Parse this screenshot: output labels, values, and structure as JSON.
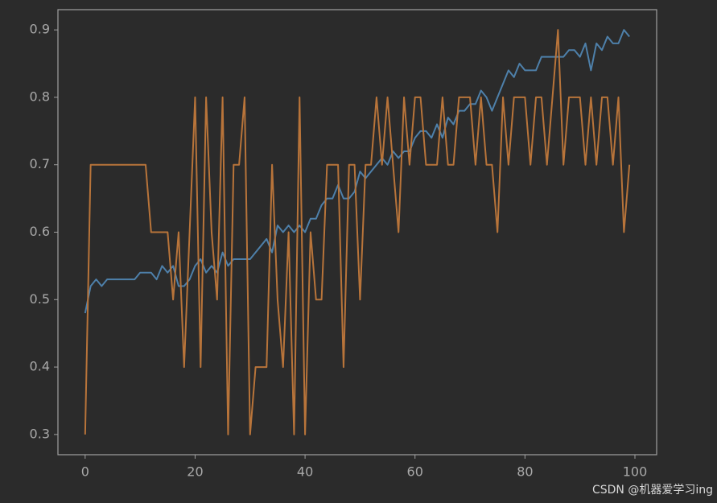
{
  "chart_data": {
    "type": "line",
    "x": [
      0,
      1,
      2,
      3,
      4,
      5,
      6,
      7,
      8,
      9,
      10,
      11,
      12,
      13,
      14,
      15,
      16,
      17,
      18,
      19,
      20,
      21,
      22,
      23,
      24,
      25,
      26,
      27,
      28,
      29,
      30,
      31,
      32,
      33,
      34,
      35,
      36,
      37,
      38,
      39,
      40,
      41,
      42,
      43,
      44,
      45,
      46,
      47,
      48,
      49,
      50,
      51,
      52,
      53,
      54,
      55,
      56,
      57,
      58,
      59,
      60,
      61,
      62,
      63,
      64,
      65,
      66,
      67,
      68,
      69,
      70,
      71,
      72,
      73,
      74,
      75,
      76,
      77,
      78,
      79,
      80,
      81,
      82,
      83,
      84,
      85,
      86,
      87,
      88,
      89,
      90,
      91,
      92,
      93,
      94,
      95,
      96,
      97,
      98,
      99
    ],
    "series": [
      {
        "color": "#4e80aa",
        "values": [
          0.48,
          0.52,
          0.53,
          0.52,
          0.53,
          0.53,
          0.53,
          0.53,
          0.53,
          0.53,
          0.54,
          0.54,
          0.54,
          0.53,
          0.55,
          0.54,
          0.55,
          0.52,
          0.52,
          0.53,
          0.55,
          0.56,
          0.54,
          0.55,
          0.54,
          0.57,
          0.55,
          0.56,
          0.56,
          0.56,
          0.56,
          0.57,
          0.58,
          0.59,
          0.57,
          0.61,
          0.6,
          0.61,
          0.6,
          0.61,
          0.6,
          0.62,
          0.62,
          0.64,
          0.65,
          0.65,
          0.67,
          0.65,
          0.65,
          0.66,
          0.69,
          0.68,
          0.69,
          0.7,
          0.71,
          0.7,
          0.72,
          0.71,
          0.72,
          0.72,
          0.74,
          0.75,
          0.75,
          0.74,
          0.76,
          0.74,
          0.77,
          0.76,
          0.78,
          0.78,
          0.79,
          0.79,
          0.81,
          0.8,
          0.78,
          0.8,
          0.82,
          0.84,
          0.83,
          0.85,
          0.84,
          0.84,
          0.84,
          0.86,
          0.86,
          0.86,
          0.86,
          0.86,
          0.87,
          0.87,
          0.86,
          0.88,
          0.84,
          0.88,
          0.87,
          0.89,
          0.88,
          0.88,
          0.9,
          0.89
        ]
      },
      {
        "color": "#b8743a",
        "values": [
          0.3,
          0.7,
          0.7,
          0.7,
          0.7,
          0.7,
          0.7,
          0.7,
          0.7,
          0.7,
          0.7,
          0.7,
          0.6,
          0.6,
          0.6,
          0.6,
          0.5,
          0.6,
          0.4,
          0.6,
          0.8,
          0.4,
          0.8,
          0.6,
          0.5,
          0.8,
          0.3,
          0.7,
          0.7,
          0.8,
          0.3,
          0.4,
          0.4,
          0.4,
          0.7,
          0.5,
          0.4,
          0.6,
          0.3,
          0.8,
          0.3,
          0.6,
          0.5,
          0.5,
          0.7,
          0.7,
          0.7,
          0.4,
          0.7,
          0.7,
          0.5,
          0.7,
          0.7,
          0.8,
          0.7,
          0.8,
          0.7,
          0.6,
          0.8,
          0.7,
          0.8,
          0.8,
          0.7,
          0.7,
          0.7,
          0.8,
          0.7,
          0.7,
          0.8,
          0.8,
          0.8,
          0.7,
          0.8,
          0.7,
          0.7,
          0.6,
          0.8,
          0.7,
          0.8,
          0.8,
          0.8,
          0.7,
          0.8,
          0.8,
          0.7,
          0.8,
          0.9,
          0.7,
          0.8,
          0.8,
          0.8,
          0.7,
          0.8,
          0.7,
          0.8,
          0.8,
          0.7,
          0.8,
          0.6,
          0.7
        ]
      }
    ],
    "xlim": [
      -4.95,
      103.95
    ],
    "xticks": [
      0,
      20,
      40,
      60,
      80,
      100
    ],
    "ylim": [
      0.27,
      0.93
    ],
    "yticks": [
      0.3,
      0.4,
      0.5,
      0.6,
      0.7,
      0.8,
      0.9
    ],
    "grid": false,
    "watermark": "CSDN @机器爱学习ing"
  }
}
